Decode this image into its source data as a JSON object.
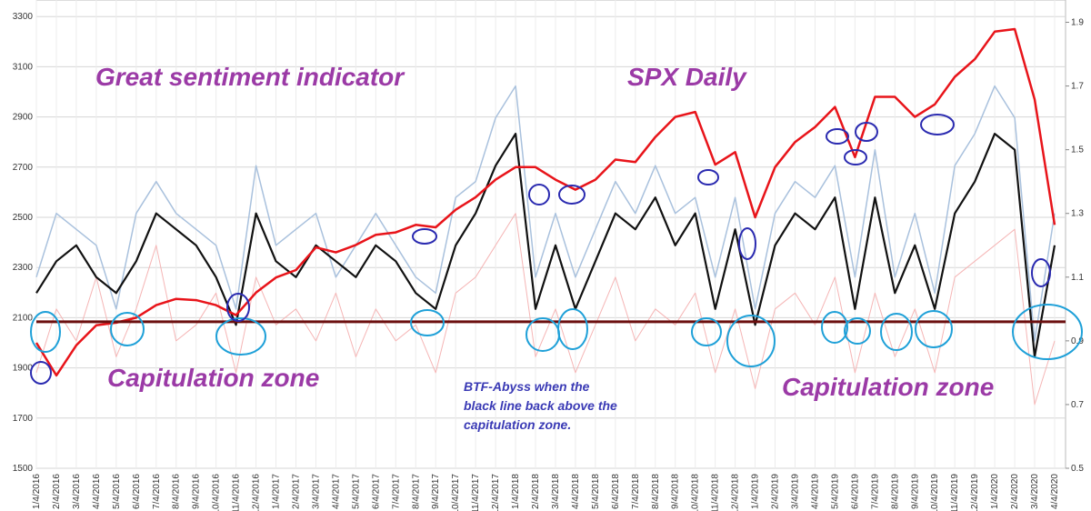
{
  "chart_data": {
    "type": "line",
    "annotations": [
      "Great sentiment indicator",
      "SPX Daily",
      "Capitulation zone",
      "Capitulation zone"
    ],
    "note_lines": [
      "BTF-Abyss when the",
      "black line back above the",
      "capitulation zone."
    ],
    "categories": [
      "1/4/2016",
      "2/4/2016",
      "3/4/2016",
      "4/4/2016",
      "5/4/2016",
      "6/4/2016",
      "7/4/2016",
      "8/4/2016",
      "9/4/2016",
      "10/4/2016",
      "11/4/2016",
      "12/4/2016",
      "1/4/2017",
      "2/4/2017",
      "3/4/2017",
      "4/4/2017",
      "5/4/2017",
      "6/4/2017",
      "7/4/2017",
      "8/4/2017",
      "9/4/2017",
      "10/4/2017",
      "11/4/2017",
      "12/4/2017",
      "1/4/2018",
      "2/4/2018",
      "3/4/2018",
      "4/4/2018",
      "5/4/2018",
      "6/4/2018",
      "7/4/2018",
      "8/4/2018",
      "9/4/2018",
      "10/4/2018",
      "11/4/2018",
      "12/4/2018",
      "1/4/2019",
      "2/4/2019",
      "3/4/2019",
      "4/4/2019",
      "5/4/2019",
      "6/4/2019",
      "7/4/2019",
      "8/4/2019",
      "9/4/2019",
      "10/4/2019",
      "11/4/2019",
      "12/4/2019",
      "1/4/2020",
      "2/4/2020",
      "3/4/2020",
      "4/4/2020"
    ],
    "series": [
      {
        "color": "#f5b5b5",
        "axis": "y2",
        "width": 1,
        "values": [
          0.8,
          1.0,
          0.9,
          1.1,
          0.85,
          1.0,
          1.2,
          0.9,
          0.95,
          1.05,
          0.8,
          1.1,
          0.95,
          1.0,
          0.9,
          1.05,
          0.85,
          1.0,
          0.9,
          0.95,
          0.8,
          1.05,
          1.1,
          1.2,
          1.3,
          0.85,
          1.0,
          0.8,
          0.95,
          1.1,
          0.9,
          1.0,
          0.95,
          1.05,
          0.8,
          1.0,
          0.75,
          1.0,
          1.05,
          0.95,
          1.1,
          0.8,
          1.05,
          0.85,
          1.0,
          0.8,
          1.1,
          1.15,
          1.2,
          1.25,
          0.7,
          0.9
        ]
      },
      {
        "color": "#a9c1dd",
        "axis": "y2",
        "width": 1.5,
        "values": [
          1.1,
          1.3,
          1.25,
          1.2,
          1.0,
          1.3,
          1.4,
          1.3,
          1.25,
          1.2,
          1.0,
          1.45,
          1.2,
          1.25,
          1.3,
          1.1,
          1.2,
          1.3,
          1.2,
          1.1,
          1.05,
          1.35,
          1.4,
          1.6,
          1.7,
          1.1,
          1.3,
          1.1,
          1.25,
          1.4,
          1.3,
          1.45,
          1.3,
          1.35,
          1.1,
          1.35,
          1.0,
          1.3,
          1.4,
          1.35,
          1.45,
          1.1,
          1.5,
          1.1,
          1.3,
          1.05,
          1.45,
          1.55,
          1.7,
          1.6,
          0.9,
          1.3
        ]
      },
      {
        "color": "#111111",
        "axis": "y2",
        "width": 2.2,
        "values": [
          1.05,
          1.15,
          1.2,
          1.1,
          1.05,
          1.15,
          1.3,
          1.25,
          1.2,
          1.1,
          0.95,
          1.3,
          1.15,
          1.1,
          1.2,
          1.15,
          1.1,
          1.2,
          1.15,
          1.05,
          1.0,
          1.2,
          1.3,
          1.45,
          1.55,
          1.0,
          1.2,
          1.0,
          1.15,
          1.3,
          1.25,
          1.35,
          1.2,
          1.3,
          1.0,
          1.25,
          0.95,
          1.2,
          1.3,
          1.25,
          1.35,
          1.0,
          1.35,
          1.05,
          1.2,
          1.0,
          1.3,
          1.4,
          1.55,
          1.5,
          0.85,
          1.2
        ]
      },
      {
        "color": "#e8141a",
        "axis": "y",
        "width": 2.5,
        "values": [
          2000,
          1870,
          1990,
          2070,
          2080,
          2100,
          2150,
          2175,
          2170,
          2150,
          2110,
          2200,
          2260,
          2290,
          2380,
          2360,
          2390,
          2430,
          2440,
          2470,
          2460,
          2530,
          2580,
          2650,
          2700,
          2700,
          2650,
          2610,
          2650,
          2730,
          2720,
          2820,
          2900,
          2920,
          2710,
          2760,
          2500,
          2700,
          2800,
          2860,
          2940,
          2740,
          2980,
          2980,
          2900,
          2950,
          3060,
          3130,
          3240,
          3250,
          2970,
          2470
        ]
      }
    ],
    "reference_line": {
      "axis": "y2",
      "value": 0.96,
      "color": "#6b0f0f"
    },
    "ylim": [
      1500,
      3366
    ],
    "yticks": [
      1500,
      1700,
      1900,
      2100,
      2300,
      2500,
      2700,
      2900,
      3100,
      3300
    ],
    "y2lim": [
      0.5,
      1.97
    ],
    "y2ticks": [
      0.5,
      0.7,
      0.9,
      1.1,
      1.3,
      1.5,
      1.7,
      1.9
    ],
    "grid": true
  }
}
